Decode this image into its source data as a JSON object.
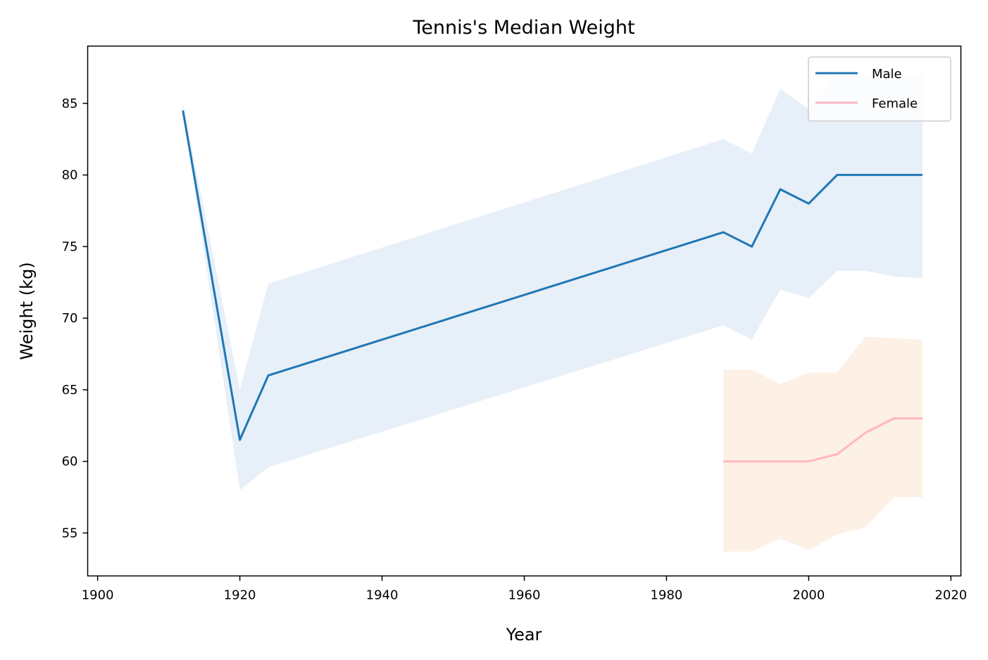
{
  "chart_data": {
    "type": "line",
    "title": "Tennis's Median Weight",
    "xlabel": "Year",
    "ylabel": "Weight (kg)",
    "xlim": [
      1898.6,
      2021.4
    ],
    "ylim": [
      52,
      89
    ],
    "xticks": [
      1900,
      1920,
      1940,
      1960,
      1980,
      2000,
      2020
    ],
    "yticks": [
      55,
      60,
      65,
      70,
      75,
      80,
      85
    ],
    "grid": false,
    "legend_position": "upper right",
    "series": [
      {
        "name": "Male",
        "color": "#1f77b4",
        "band_color": "#e7eff8",
        "x": [
          1912,
          1920,
          1924,
          1988,
          1992,
          1996,
          2000,
          2004,
          2008,
          2012,
          2016
        ],
        "y": [
          84.5,
          61.5,
          66,
          76,
          75,
          79,
          78,
          80,
          80,
          80,
          80
        ],
        "lower": [
          84.5,
          58,
          59.6,
          69.5,
          68.5,
          72,
          71.4,
          73.3,
          73.3,
          72.9,
          72.8
        ],
        "upper": [
          85,
          65,
          72.4,
          82.5,
          81.5,
          86,
          84.6,
          87,
          87,
          87,
          87
        ]
      },
      {
        "name": "Female",
        "color": "#ffb6c1",
        "band_color": "#fdf0e5",
        "x": [
          1988,
          1992,
          1996,
          2000,
          2004,
          2008,
          2012,
          2016
        ],
        "y": [
          60,
          60,
          60,
          60,
          60.5,
          62,
          63,
          63
        ],
        "lower": [
          53.7,
          53.7,
          54.6,
          53.8,
          54.9,
          55.4,
          57.5,
          57.5
        ],
        "upper": [
          66.4,
          66.4,
          65.4,
          66.2,
          66.2,
          68.7,
          68.6,
          68.5
        ]
      }
    ]
  }
}
